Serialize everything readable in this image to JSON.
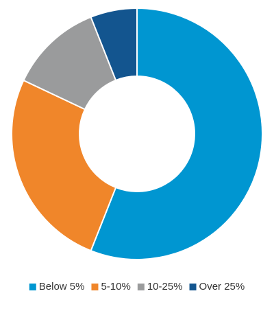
{
  "chart_data": {
    "type": "donut",
    "categories": [
      "Below 5%",
      "5-10%",
      "10-25%",
      "Over 25%"
    ],
    "values": [
      56,
      26,
      12,
      6
    ],
    "colors": [
      "#0096d1",
      "#f0862a",
      "#9a9b9c",
      "#13558f"
    ],
    "legend": "bottom"
  }
}
